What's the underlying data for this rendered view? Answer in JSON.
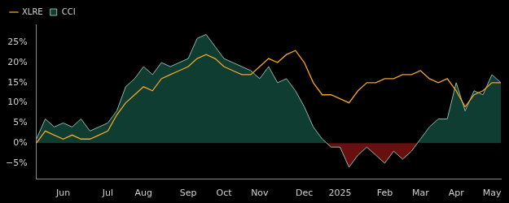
{
  "chart_data": {
    "type": "line",
    "categories": [
      null,
      null,
      null,
      "Jun",
      null,
      null,
      null,
      null,
      "Jul",
      null,
      null,
      null,
      "Aug",
      null,
      null,
      null,
      null,
      "Sep",
      null,
      null,
      null,
      "Oct",
      null,
      null,
      null,
      "Nov",
      null,
      null,
      null,
      null,
      "Dec",
      null,
      null,
      null,
      "2025",
      null,
      null,
      null,
      null,
      "Feb",
      null,
      null,
      null,
      "Mar",
      null,
      null,
      null,
      "Apr",
      null,
      null,
      null,
      "May",
      null
    ],
    "series": [
      {
        "name": "CCI",
        "type": "area",
        "color": "#8fb8a6",
        "values": [
          1,
          6,
          4,
          5,
          4,
          6,
          3,
          4,
          5,
          8,
          14,
          16,
          19,
          17,
          20,
          19,
          20,
          21,
          26,
          27,
          24,
          21,
          20,
          19,
          18,
          16,
          19,
          15,
          16,
          13,
          9,
          4,
          1,
          -1,
          -1,
          -6,
          -3,
          -1,
          -3,
          -5,
          -2,
          -4,
          -2,
          1,
          4,
          6,
          6,
          15,
          8,
          13,
          12,
          17,
          15
        ]
      },
      {
        "name": "XLRE",
        "type": "line",
        "color": "#f5a623",
        "values": [
          0,
          3,
          2,
          1,
          2,
          1,
          1,
          2,
          3,
          7,
          10,
          12,
          14,
          13,
          16,
          17,
          18,
          19,
          21,
          22,
          21,
          19,
          18,
          17,
          17,
          19,
          21,
          20,
          22,
          23,
          20,
          15,
          12,
          12,
          11,
          10,
          13,
          15,
          15,
          16,
          16,
          17,
          17,
          18,
          16,
          15,
          16,
          13,
          9,
          12,
          13,
          15,
          15
        ]
      }
    ],
    "ylim": [
      -9,
      29.5
    ],
    "yticks": [
      {
        "value": -5,
        "label": "−5%"
      },
      {
        "value": 0,
        "label": "0%"
      },
      {
        "value": 5,
        "label": "5%"
      },
      {
        "value": 10,
        "label": "10%"
      },
      {
        "value": 15,
        "label": "15%"
      },
      {
        "value": 20,
        "label": "20%"
      },
      {
        "value": 25,
        "label": "25%"
      }
    ],
    "grid": false,
    "legend": "upper left",
    "marker": "none"
  }
}
